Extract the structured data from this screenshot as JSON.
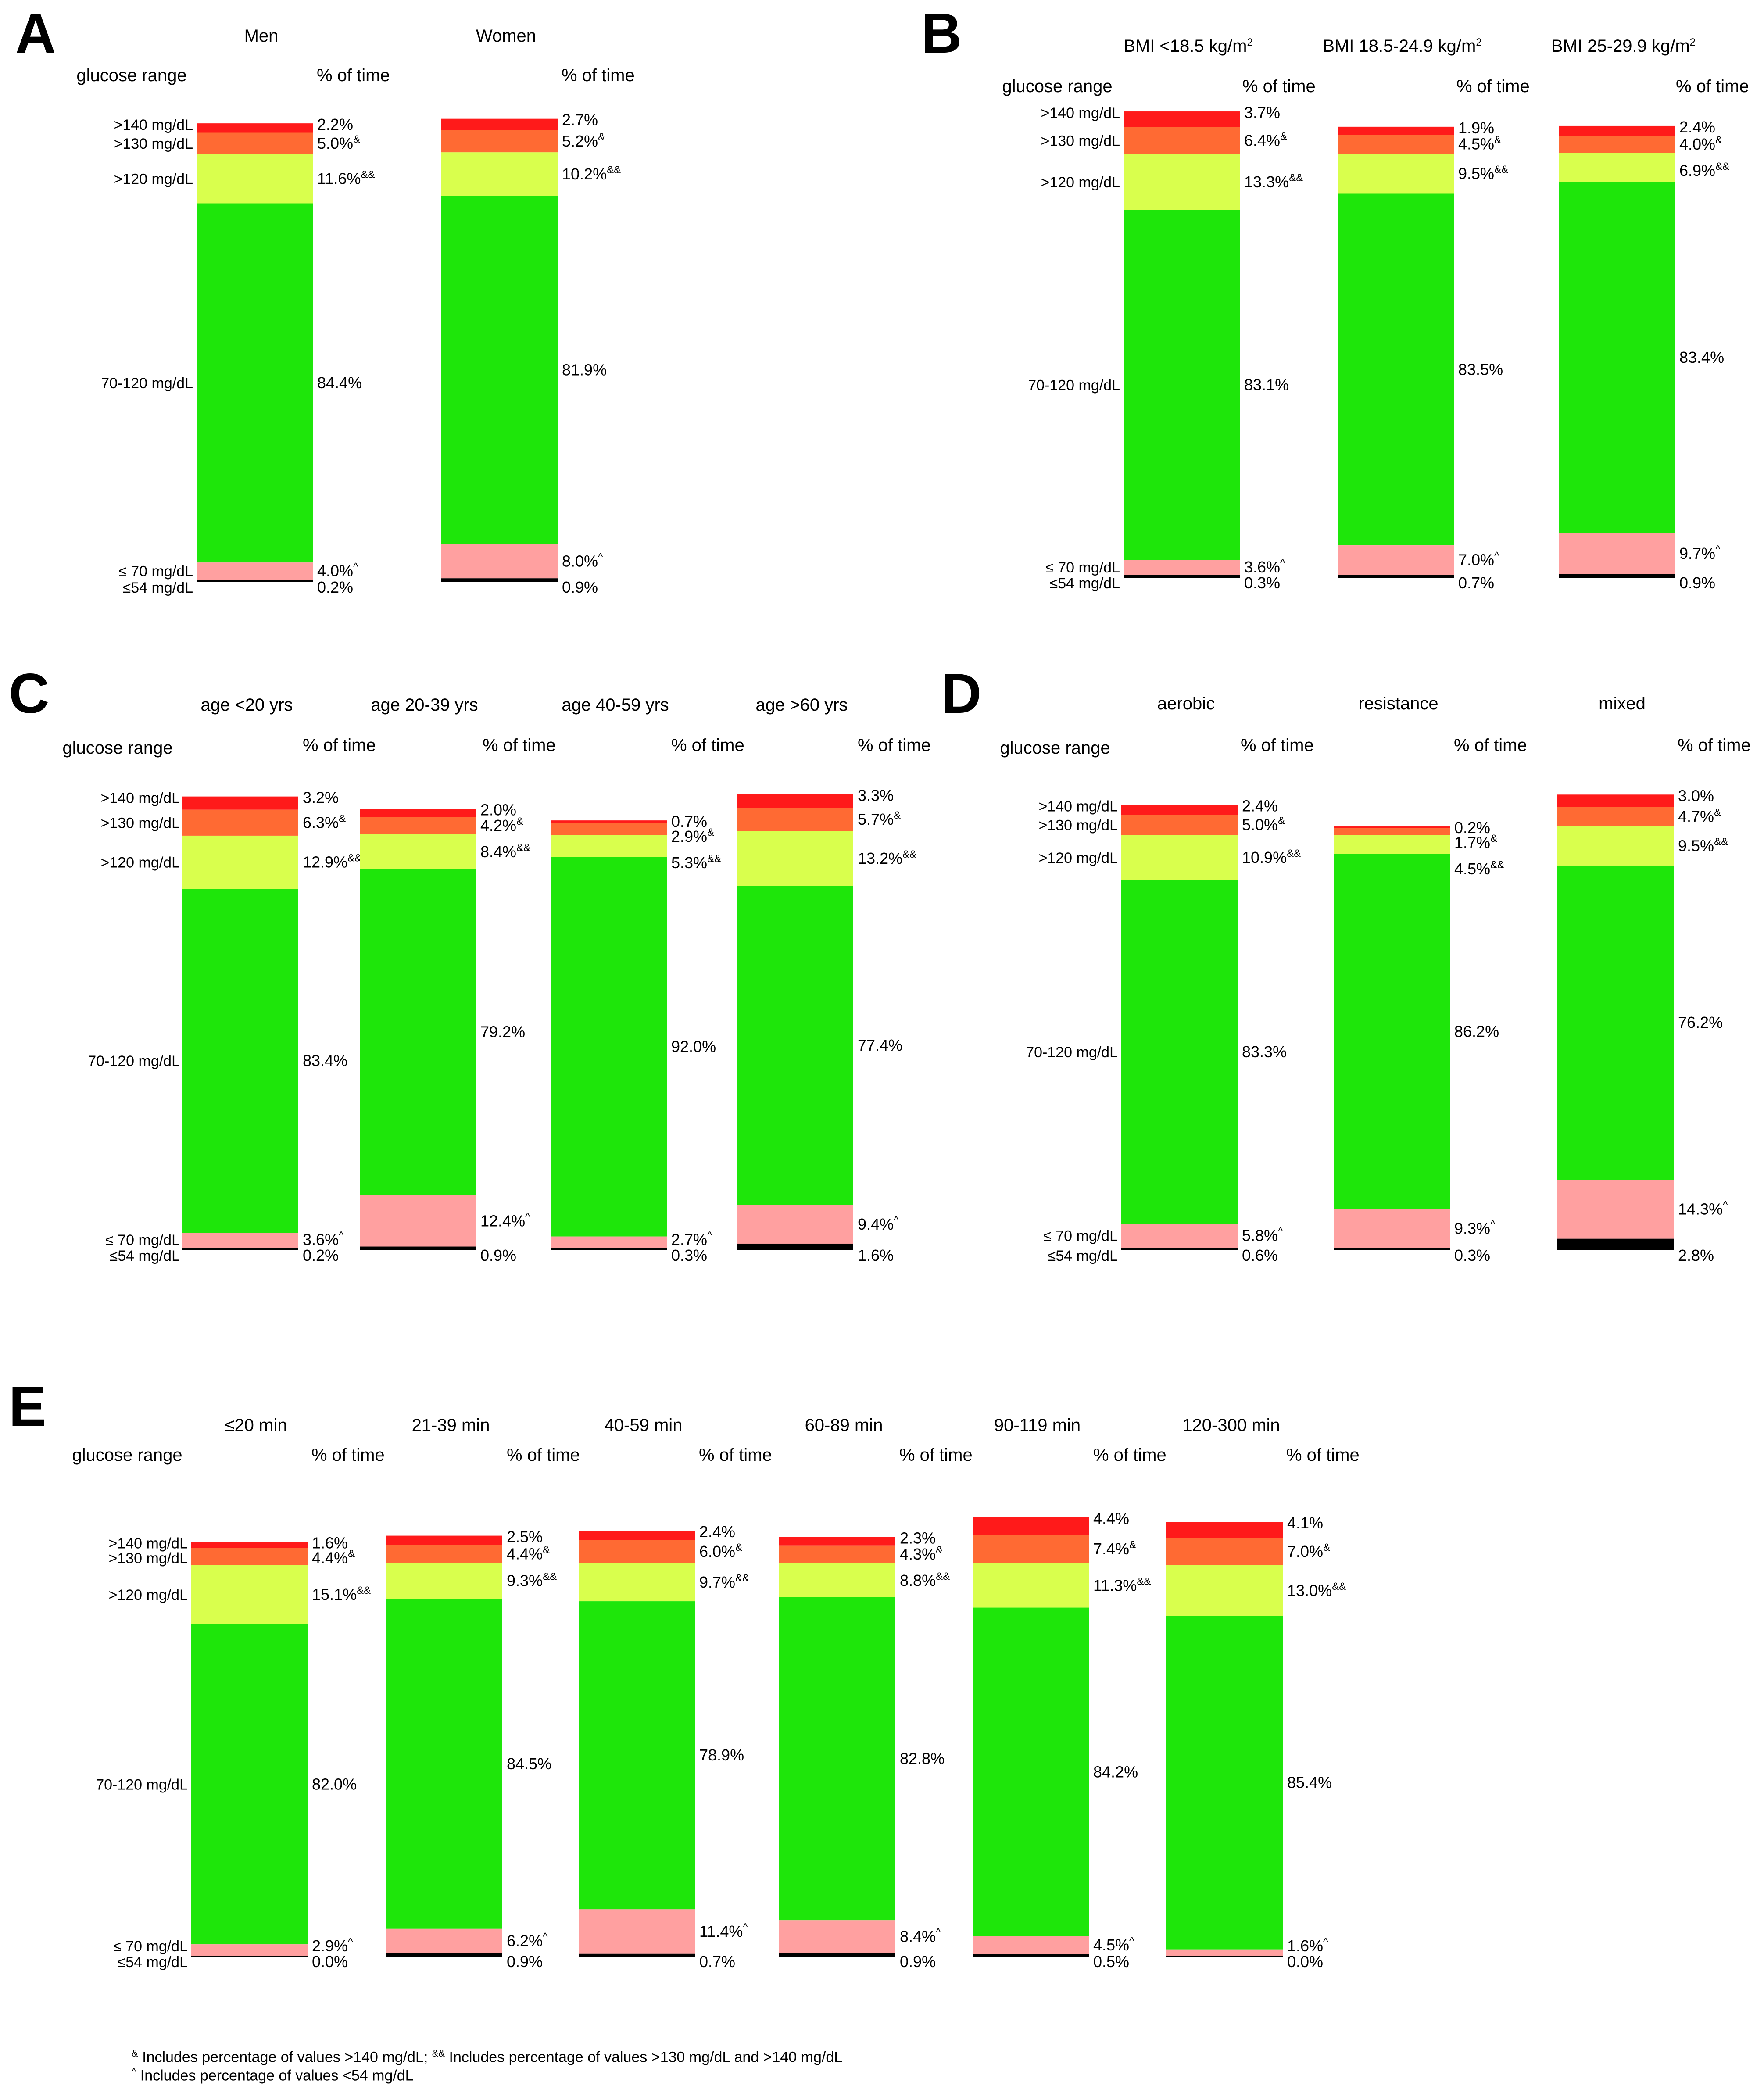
{
  "labels": {
    "glucose_range": "glucose range",
    "pct_time": "% of time",
    "categories": [
      ">140 mg/dL",
      ">130 mg/dL",
      ">120 mg/dL",
      "70-120 mg/dL",
      "≤ 70 mg/dL",
      "≤54 mg/dL"
    ]
  },
  "colors": {
    "c140": "#ff1a1a",
    "c130": "#ff6a33",
    "c120": "#d9ff4d",
    "range": "#1ee60a",
    "low": "#ffa0a0",
    "vlow": "#000000"
  },
  "chart_data": [
    {
      "type": "stacked-bar",
      "panel": "A",
      "bars": [
        {
          "name": "Men",
          "values": [
            2.2,
            5.0,
            11.6,
            84.4,
            4.0,
            0.2
          ]
        },
        {
          "name": "Women",
          "values": [
            2.7,
            5.2,
            10.2,
            81.9,
            8.0,
            0.9
          ]
        }
      ]
    },
    {
      "type": "stacked-bar",
      "panel": "B",
      "bars": [
        {
          "name": "BMI <18.5 kg/m2",
          "values": [
            3.7,
            6.4,
            13.3,
            83.1,
            3.6,
            0.3
          ]
        },
        {
          "name": "BMI 18.5-24.9 kg/m2",
          "values": [
            1.9,
            4.5,
            9.5,
            83.5,
            7.0,
            0.7
          ]
        },
        {
          "name": "BMI 25-29.9 kg/m2",
          "values": [
            2.4,
            4.0,
            6.9,
            83.4,
            9.7,
            0.9
          ]
        }
      ]
    },
    {
      "type": "stacked-bar",
      "panel": "C",
      "bars": [
        {
          "name": "age <20 yrs",
          "values": [
            3.2,
            6.3,
            12.9,
            83.4,
            3.6,
            0.2
          ]
        },
        {
          "name": "age 20-39 yrs",
          "values": [
            2.0,
            4.2,
            8.4,
            79.2,
            12.4,
            0.9
          ]
        },
        {
          "name": "age 40-59 yrs",
          "values": [
            0.7,
            2.9,
            5.3,
            92.0,
            2.7,
            0.3
          ]
        },
        {
          "name": "age >60 yrs",
          "values": [
            3.3,
            5.7,
            13.2,
            77.4,
            9.4,
            1.6
          ]
        }
      ]
    },
    {
      "type": "stacked-bar",
      "panel": "D",
      "bars": [
        {
          "name": "aerobic",
          "values": [
            2.4,
            5.0,
            10.9,
            83.3,
            5.8,
            0.6
          ]
        },
        {
          "name": "resistance",
          "values": [
            0.2,
            1.7,
            4.5,
            86.2,
            9.3,
            0.3
          ]
        },
        {
          "name": "mixed",
          "values": [
            3.0,
            4.7,
            9.5,
            76.2,
            14.3,
            2.8
          ]
        }
      ]
    },
    {
      "type": "stacked-bar",
      "panel": "E",
      "bars": [
        {
          "name": "≤20 min",
          "values": [
            1.6,
            4.4,
            15.1,
            82.0,
            2.9,
            0.0
          ]
        },
        {
          "name": "21-39 min",
          "values": [
            2.5,
            4.4,
            9.3,
            84.5,
            6.2,
            0.9
          ]
        },
        {
          "name": "40-59 min",
          "values": [
            2.4,
            6.0,
            9.7,
            78.9,
            11.4,
            0.7
          ]
        },
        {
          "name": "60-89 min",
          "values": [
            2.3,
            4.3,
            8.8,
            82.8,
            8.4,
            0.9
          ]
        },
        {
          "name": "90-119 min",
          "values": [
            4.4,
            7.4,
            11.3,
            84.2,
            4.5,
            0.5
          ]
        },
        {
          "name": "120-300 min",
          "values": [
            4.1,
            7.0,
            13.0,
            85.4,
            1.6,
            0.0
          ]
        }
      ]
    }
  ],
  "footnotes": {
    "n1_mark": "&",
    "n1_text": " Includes percentage of values >140 mg/dL; ",
    "n2_mark": "&&",
    "n2_text": " Includes percentage of values >130 mg/dL and >140 mg/dL",
    "n3_mark": "^",
    "n3_text": " Includes percentage of values <54 mg/dL"
  }
}
